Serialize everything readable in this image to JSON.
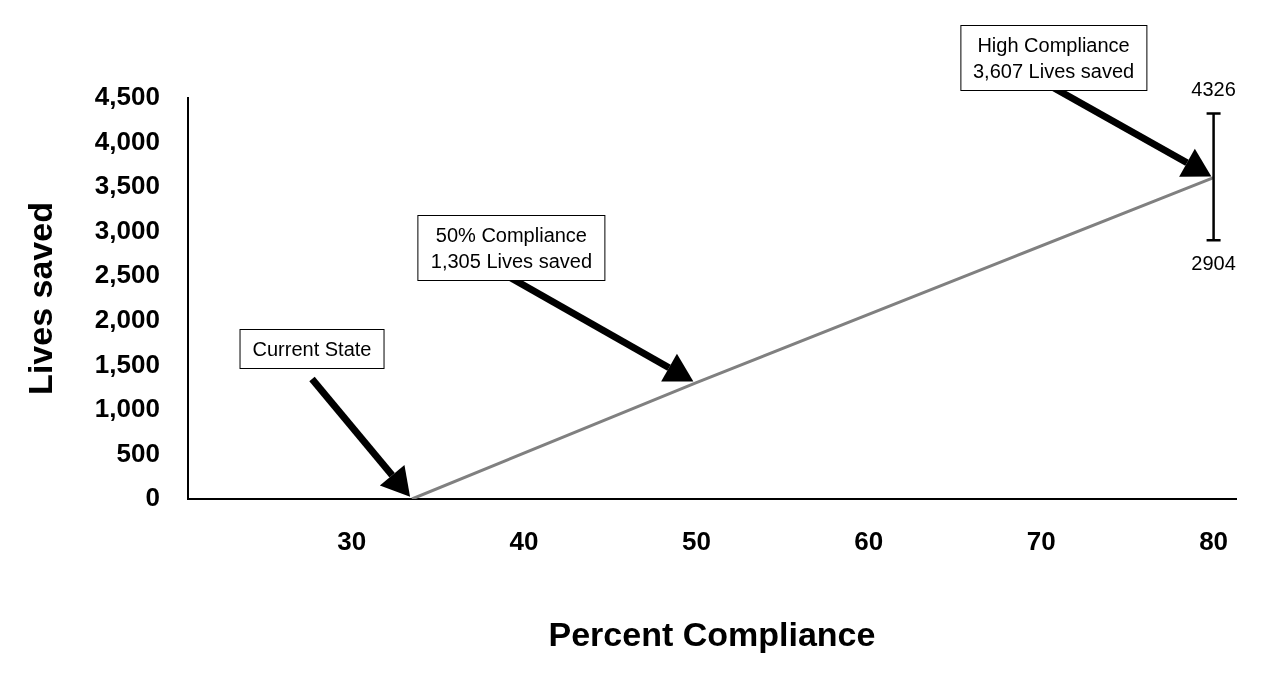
{
  "chart_data": {
    "type": "line",
    "xlabel": "Percent Compliance",
    "ylabel": "Lives saved",
    "series": [
      {
        "x": [
          33.5,
          50,
          80
        ],
        "values": [
          0,
          1305,
          3607
        ],
        "color": "#808080",
        "errors": [
          null,
          null,
          [
            2904,
            4326
          ]
        ]
      }
    ],
    "xlim": [
      20.5,
      81.3
    ],
    "xticks": [
      30,
      40,
      50,
      60,
      70,
      80
    ],
    "ylim": [
      0,
      4500
    ],
    "yticks": [
      {
        "value": 0,
        "label": "0"
      },
      {
        "value": 500,
        "label": "500"
      },
      {
        "value": 1000,
        "label": "1,000"
      },
      {
        "value": 1500,
        "label": "1,500"
      },
      {
        "value": 2000,
        "label": "2,000"
      },
      {
        "value": 2500,
        "label": "2,500"
      },
      {
        "value": 3000,
        "label": "3,000"
      },
      {
        "value": 3500,
        "label": "3,500"
      },
      {
        "value": 4000,
        "label": "4,000"
      },
      {
        "value": 4500,
        "label": "4,500"
      }
    ],
    "grid": false,
    "legend": false,
    "marker": "none",
    "line_style": "solid",
    "annotations": [
      "Current State",
      "50% Compliance\n1,305 Lives saved",
      "High Compliance\n3,607 Lives saved",
      {
        "text": "4326",
        "x": 80,
        "y": 4326
      },
      {
        "text": "2904",
        "x": 80,
        "y": 2904
      }
    ]
  }
}
